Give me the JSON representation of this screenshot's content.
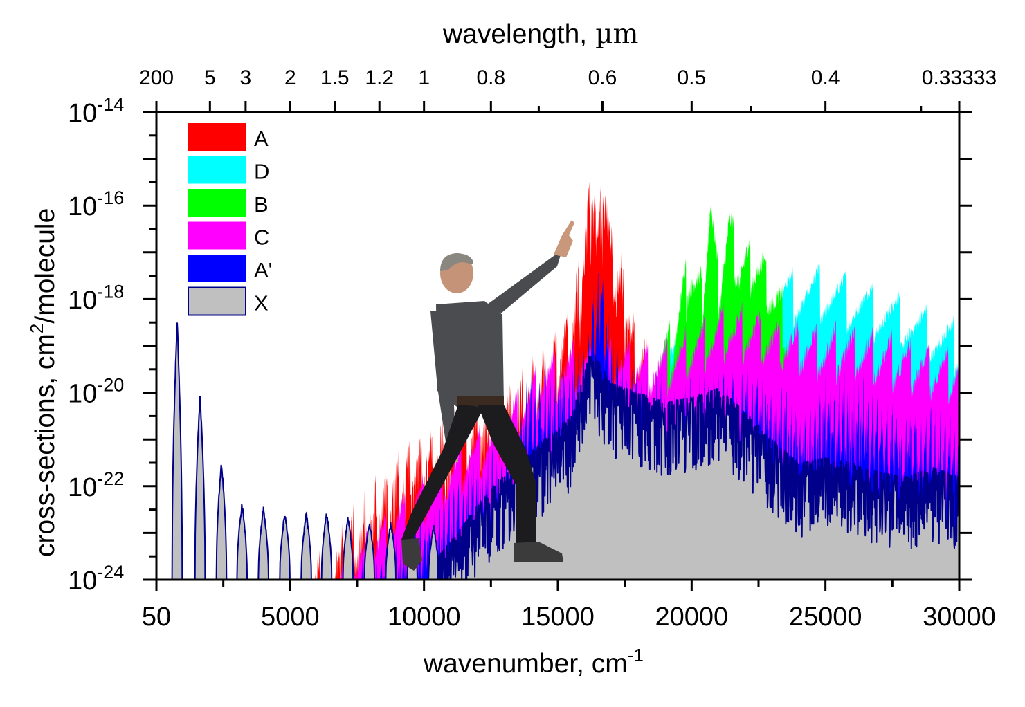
{
  "chart_data": {
    "type": "area",
    "title": "",
    "xlabel": "wavenumber, cm",
    "xlabel_superscript": "-1",
    "ylabel": "cross-sections, cm",
    "ylabel_superscript": "2",
    "ylabel_suffix": "/molecule",
    "x2label": "wavelength,",
    "x2label_unit": "µm",
    "xlim": [
      50,
      30000
    ],
    "ylim_log10": [
      -24,
      -14
    ],
    "yscale": "log",
    "grid": false,
    "legend_position": "top-left",
    "x_ticks": [
      {
        "value": 50,
        "label": "50"
      },
      {
        "value": 5000,
        "label": "5000"
      },
      {
        "value": 10000,
        "label": "10000"
      },
      {
        "value": 15000,
        "label": "15000"
      },
      {
        "value": 20000,
        "label": "20000"
      },
      {
        "value": 25000,
        "label": "25000"
      },
      {
        "value": 30000,
        "label": "30000"
      }
    ],
    "x_minor_ticks": [
      2500,
      7500,
      12500,
      17500,
      22500,
      27500
    ],
    "y_ticks": [
      {
        "exp": -14,
        "base": "10",
        "sup": "-14"
      },
      {
        "exp": -16,
        "base": "10",
        "sup": "-16"
      },
      {
        "exp": -18,
        "base": "10",
        "sup": "-18"
      },
      {
        "exp": -20,
        "base": "10",
        "sup": "-20"
      },
      {
        "exp": -22,
        "base": "10",
        "sup": "-22"
      },
      {
        "exp": -24,
        "base": "10",
        "sup": "-24"
      }
    ],
    "top_ticks": [
      {
        "wavelength_um": 200,
        "label": "200"
      },
      {
        "wavelength_um": 5,
        "label": "5"
      },
      {
        "wavelength_um": 3,
        "label": "3"
      },
      {
        "wavelength_um": 2,
        "label": "2"
      },
      {
        "wavelength_um": 1.5,
        "label": "1.5"
      },
      {
        "wavelength_um": 1.2,
        "label": "1.2"
      },
      {
        "wavelength_um": 1,
        "label": "1"
      },
      {
        "wavelength_um": 0.8,
        "label": "0.8"
      },
      {
        "wavelength_um": 0.6,
        "label": "0.6"
      },
      {
        "wavelength_um": 0.5,
        "label": "0.5"
      },
      {
        "wavelength_um": 0.4,
        "label": "0.4"
      },
      {
        "wavelength_um": 0.33333,
        "label": "0.33333"
      }
    ],
    "top_minor_ticks_um": [
      0.7,
      0.45,
      0.35
    ],
    "legend": [
      {
        "name": "A",
        "color": "#ff0000"
      },
      {
        "name": "D",
        "color": "#00ffff"
      },
      {
        "name": "B",
        "color": "#00ff00"
      },
      {
        "name": "C",
        "color": "#ff00ff"
      },
      {
        "name": "A'",
        "color": "#0000ff"
      },
      {
        "name": "X",
        "color": "#c0c0c0",
        "edge": "#00008b"
      }
    ],
    "series": [
      {
        "name": "D",
        "color": "#00ffff",
        "envelope": [
          [
            18800,
            -18.6
          ],
          [
            19500,
            -18.4
          ],
          [
            20500,
            -18.0
          ],
          [
            21500,
            -17.8
          ],
          [
            22500,
            -17.6
          ],
          [
            23500,
            -17.4
          ],
          [
            24500,
            -17.3
          ],
          [
            25500,
            -17.4
          ],
          [
            26500,
            -17.6
          ],
          [
            27500,
            -17.8
          ],
          [
            28500,
            -18.1
          ],
          [
            29500,
            -18.4
          ],
          [
            30000,
            -18.5
          ]
        ],
        "band_period": 1000,
        "band_depth": 1.3,
        "noise": 0.15
      },
      {
        "name": "B",
        "color": "#00ff00",
        "envelope": [
          [
            18600,
            -18.8
          ],
          [
            19300,
            -18.4
          ],
          [
            19900,
            -16.8
          ],
          [
            20400,
            -17.4
          ],
          [
            20700,
            -15.4
          ],
          [
            21000,
            -17.2
          ],
          [
            21400,
            -15.9
          ],
          [
            21800,
            -16.8
          ],
          [
            22300,
            -16.6
          ],
          [
            22800,
            -17.0
          ],
          [
            23300,
            -17.7
          ],
          [
            23600,
            -18.2
          ]
        ],
        "band_period": 600,
        "band_depth": 1.4,
        "noise": 0.2
      },
      {
        "name": "A",
        "color": "#ff0000",
        "envelope": [
          [
            5300,
            -23.8
          ],
          [
            6000,
            -23.2
          ],
          [
            7000,
            -22.6
          ],
          [
            8000,
            -21.9
          ],
          [
            9000,
            -21.2
          ],
          [
            10000,
            -20.7
          ],
          [
            11000,
            -20.3
          ],
          [
            12000,
            -20.0
          ],
          [
            13000,
            -19.6
          ],
          [
            14000,
            -19.2
          ],
          [
            15000,
            -18.6
          ],
          [
            15500,
            -17.8
          ],
          [
            15900,
            -16.6
          ],
          [
            16300,
            -14.6
          ],
          [
            16500,
            -16.0
          ],
          [
            16700,
            -14.6
          ],
          [
            17000,
            -16.3
          ],
          [
            17300,
            -16.6
          ],
          [
            17600,
            -17.5
          ],
          [
            17900,
            -18.5
          ],
          [
            18400,
            -18.9
          ]
        ],
        "band_period": 420,
        "band_depth": 1.6,
        "noise": 0.25
      },
      {
        "name": "C",
        "color": "#ff00ff",
        "envelope": [
          [
            6500,
            -23.6
          ],
          [
            7500,
            -23.2
          ],
          [
            8500,
            -22.6
          ],
          [
            9500,
            -22.0
          ],
          [
            10500,
            -21.5
          ],
          [
            11500,
            -21.0
          ],
          [
            12500,
            -20.5
          ],
          [
            13500,
            -20.0
          ],
          [
            14500,
            -19.2
          ],
          [
            15500,
            -19.0
          ],
          [
            17000,
            -18.9
          ],
          [
            18000,
            -19.0
          ],
          [
            19000,
            -18.9
          ],
          [
            20000,
            -18.6
          ],
          [
            21000,
            -18.2
          ],
          [
            22000,
            -18.2
          ],
          [
            23000,
            -18.4
          ],
          [
            24000,
            -18.5
          ],
          [
            25000,
            -18.6
          ],
          [
            26000,
            -18.6
          ],
          [
            27000,
            -18.7
          ],
          [
            28000,
            -18.9
          ],
          [
            29000,
            -19.0
          ],
          [
            30000,
            -19.0
          ]
        ],
        "band_period": 700,
        "band_depth": 1.2,
        "noise": 0.2
      },
      {
        "name": "A'",
        "color": "#0000ff",
        "envelope": [
          [
            7000,
            -23.7
          ],
          [
            8000,
            -23.3
          ],
          [
            9000,
            -23.0
          ],
          [
            10000,
            -22.5
          ],
          [
            11000,
            -22.0
          ],
          [
            12000,
            -21.5
          ],
          [
            13000,
            -21.0
          ],
          [
            14000,
            -19.8
          ],
          [
            15000,
            -19.5
          ],
          [
            16000,
            -18.9
          ],
          [
            16600,
            -17.2
          ],
          [
            17000,
            -18.6
          ],
          [
            17600,
            -19.5
          ],
          [
            18500,
            -19.8
          ],
          [
            20000,
            -19.8
          ],
          [
            21000,
            -19.4
          ],
          [
            22000,
            -19.5
          ],
          [
            23000,
            -19.8
          ],
          [
            24000,
            -20.2
          ],
          [
            25000,
            -19.9
          ],
          [
            26000,
            -19.8
          ],
          [
            27000,
            -20.0
          ],
          [
            28000,
            -20.3
          ],
          [
            29000,
            -20.4
          ],
          [
            30000,
            -20.6
          ]
        ],
        "band_period": 180,
        "band_depth": 1.6,
        "noise": 0.45
      },
      {
        "name": "X",
        "color": "#c0c0c0",
        "edge": "#00008b",
        "peaks": [
          [
            775,
            -18.5
          ],
          [
            1630,
            -20.1
          ],
          [
            2430,
            -21.5
          ],
          [
            3200,
            -22.4
          ],
          [
            4000,
            -22.5
          ],
          [
            4800,
            -22.6
          ],
          [
            5600,
            -22.6
          ],
          [
            6360,
            -22.6
          ],
          [
            7160,
            -22.7
          ],
          [
            7960,
            -22.8
          ],
          [
            8760,
            -22.8
          ],
          [
            9560,
            -22.9
          ],
          [
            10360,
            -22.9
          ]
        ],
        "continuum": [
          [
            10500,
            -23.5
          ],
          [
            11500,
            -22.8
          ],
          [
            12500,
            -22.0
          ],
          [
            13500,
            -21.5
          ],
          [
            14500,
            -21.0
          ],
          [
            15500,
            -20.5
          ],
          [
            16200,
            -19.0
          ],
          [
            17000,
            -19.8
          ],
          [
            18000,
            -20.0
          ],
          [
            19000,
            -20.2
          ],
          [
            20000,
            -20.1
          ],
          [
            21000,
            -19.9
          ],
          [
            22000,
            -20.4
          ],
          [
            23000,
            -21.0
          ],
          [
            24000,
            -21.5
          ],
          [
            25000,
            -21.4
          ],
          [
            26000,
            -21.5
          ],
          [
            27000,
            -21.7
          ],
          [
            28000,
            -21.8
          ],
          [
            29000,
            -21.6
          ],
          [
            30000,
            -21.8
          ]
        ]
      }
    ]
  },
  "overlay": {
    "person_photo": "person pointing at spectral peak"
  }
}
